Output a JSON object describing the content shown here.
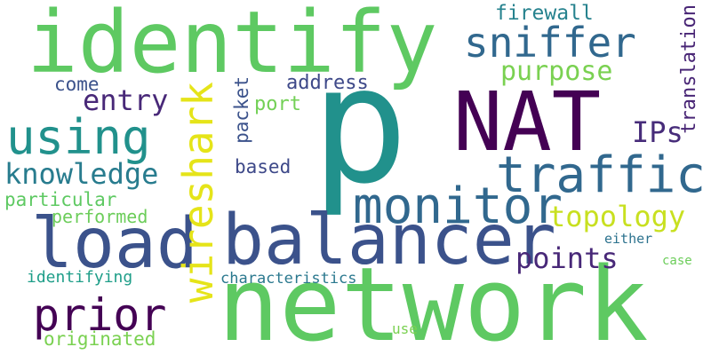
{
  "words": [
    {
      "text": "p",
      "color": "#21918c"
    },
    {
      "text": "network",
      "color": "#5ec962"
    },
    {
      "text": "identify",
      "color": "#5ec962"
    },
    {
      "text": "NAT",
      "color": "#440154"
    },
    {
      "text": "balancer",
      "color": "#3b528b"
    },
    {
      "text": "load",
      "color": "#3b528b"
    },
    {
      "text": "traffic",
      "color": "#31688e"
    },
    {
      "text": "monitor",
      "color": "#31688e"
    },
    {
      "text": "wireshark",
      "color": "#e5e419"
    },
    {
      "text": "using",
      "color": "#21918c"
    },
    {
      "text": "prior",
      "color": "#440154"
    },
    {
      "text": "sniffer",
      "color": "#31688e"
    },
    {
      "text": "knowledge",
      "color": "#287c8e"
    },
    {
      "text": "topology",
      "color": "#c8e020"
    },
    {
      "text": "points",
      "color": "#482878"
    },
    {
      "text": "entry",
      "color": "#482878"
    },
    {
      "text": "purpose",
      "color": "#7ad151"
    },
    {
      "text": "IPs",
      "color": "#472c7a"
    },
    {
      "text": "translation",
      "color": "#482575"
    },
    {
      "text": "firewall",
      "color": "#26828e"
    },
    {
      "text": "packet",
      "color": "#3b528b"
    },
    {
      "text": "address",
      "color": "#3e4989"
    },
    {
      "text": "come",
      "color": "#3b528b"
    },
    {
      "text": "port",
      "color": "#73d056"
    },
    {
      "text": "based",
      "color": "#3e4989"
    },
    {
      "text": "particular",
      "color": "#5ec962"
    },
    {
      "text": "performed",
      "color": "#6ccd5a"
    },
    {
      "text": "identifying",
      "color": "#1f9e89"
    },
    {
      "text": "characteristics",
      "color": "#2a788e"
    },
    {
      "text": "either",
      "color": "#2c728e"
    },
    {
      "text": "case",
      "color": "#6ccd5a"
    },
    {
      "text": "use",
      "color": "#7ad151"
    },
    {
      "text": "originated",
      "color": "#7ad151"
    }
  ]
}
